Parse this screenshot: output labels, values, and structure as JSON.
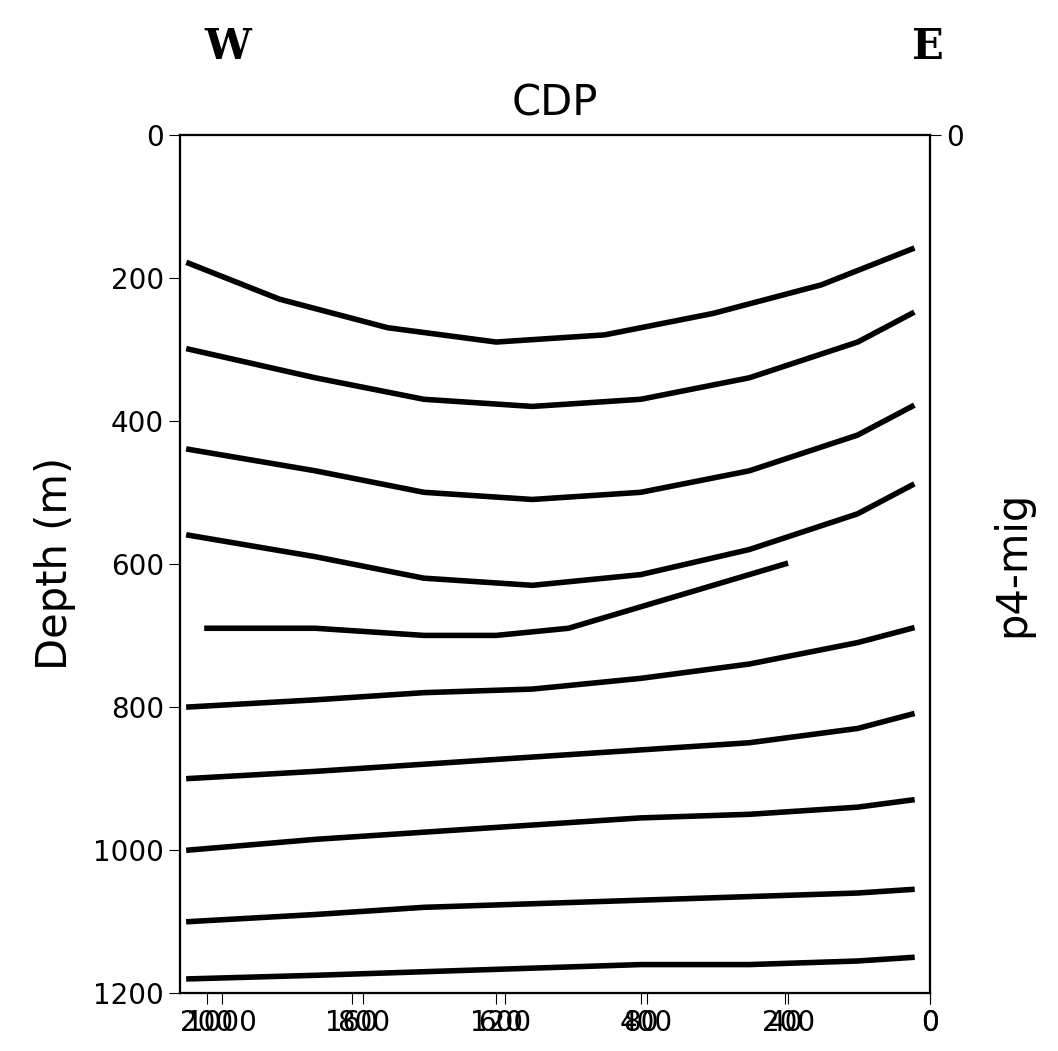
{
  "chart_data": {
    "type": "line",
    "xlabel": "CDP",
    "ylabel": "Depth (m)",
    "y2label": "p4-mig",
    "annotations": [
      "W",
      "E"
    ],
    "xlim": [
      207.5,
      0
    ],
    "xticks": [
      200,
      160,
      120,
      80,
      40,
      0
    ],
    "x2lim": [
      1059,
      0
    ],
    "x2ticks": [
      1000,
      800,
      600,
      400,
      200,
      0
    ],
    "ylim": [
      1200,
      0
    ],
    "yticks": [
      0,
      200,
      400,
      600,
      800,
      1000,
      1200
    ],
    "y2lim": [
      1200,
      0
    ],
    "y2ticks": [
      0
    ],
    "color": "#000000",
    "series": [
      {
        "x": [
          205,
          180,
          150,
          120,
          90,
          60,
          30,
          5
        ],
        "values": [
          180,
          230,
          270,
          290,
          280,
          250,
          210,
          160
        ]
      },
      {
        "x": [
          205,
          170,
          140,
          110,
          80,
          50,
          20,
          5
        ],
        "values": [
          300,
          340,
          370,
          380,
          370,
          340,
          290,
          250
        ]
      },
      {
        "x": [
          205,
          170,
          140,
          110,
          80,
          50,
          20,
          5
        ],
        "values": [
          440,
          470,
          500,
          510,
          500,
          470,
          420,
          380
        ]
      },
      {
        "x": [
          205,
          170,
          140,
          110,
          80,
          50,
          20,
          5
        ],
        "values": [
          560,
          590,
          620,
          630,
          615,
          580,
          530,
          490
        ]
      },
      {
        "x": [
          200,
          170,
          140,
          120,
          100,
          80,
          60,
          40
        ],
        "values": [
          690,
          690,
          700,
          700,
          690,
          660,
          630,
          600
        ]
      },
      {
        "x": [
          205,
          170,
          140,
          110,
          80,
          50,
          20,
          5
        ],
        "values": [
          800,
          790,
          780,
          775,
          760,
          740,
          710,
          690
        ]
      },
      {
        "x": [
          205,
          170,
          140,
          110,
          80,
          50,
          20,
          5
        ],
        "values": [
          900,
          890,
          880,
          870,
          860,
          850,
          830,
          810
        ]
      },
      {
        "x": [
          205,
          170,
          140,
          110,
          80,
          50,
          20,
          5
        ],
        "values": [
          1000,
          985,
          975,
          965,
          955,
          950,
          940,
          930
        ]
      },
      {
        "x": [
          205,
          170,
          140,
          110,
          80,
          50,
          20,
          5
        ],
        "values": [
          1100,
          1090,
          1080,
          1075,
          1070,
          1065,
          1060,
          1055
        ]
      },
      {
        "x": [
          205,
          170,
          140,
          110,
          80,
          50,
          20,
          5
        ],
        "values": [
          1180,
          1175,
          1170,
          1165,
          1160,
          1160,
          1155,
          1150
        ]
      }
    ]
  }
}
